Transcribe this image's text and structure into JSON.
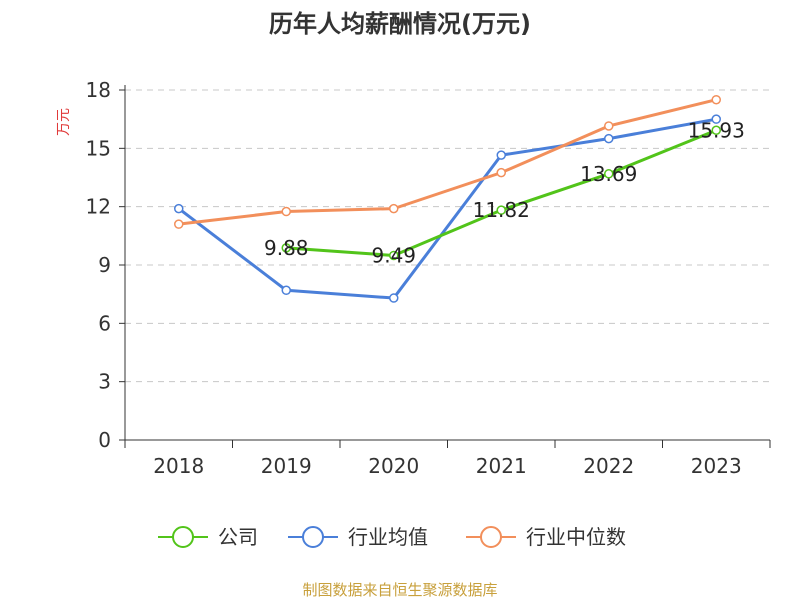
{
  "chart_data": {
    "type": "line",
    "title": "历年人均薪酬情况(万元)",
    "ylabel": "万元",
    "xlabel": "",
    "categories": [
      "2018",
      "2019",
      "2020",
      "2021",
      "2022",
      "2023"
    ],
    "ylim": [
      0,
      18
    ],
    "yticks": [
      0,
      3,
      6,
      9,
      12,
      15,
      18
    ],
    "grid": true,
    "legend_position": "bottom",
    "series": [
      {
        "name": "公司",
        "color": "#52c41a",
        "values": [
          null,
          9.88,
          9.49,
          11.82,
          13.69,
          15.93
        ],
        "labels": [
          "",
          "9.88",
          "9.49",
          "11.82",
          "13.69",
          "15.93"
        ]
      },
      {
        "name": "行业均值",
        "color": "#4a7fd9",
        "values": [
          11.9,
          7.7,
          7.3,
          14.65,
          15.5,
          16.5
        ]
      },
      {
        "name": "行业中位数",
        "color": "#f28f5b",
        "values": [
          11.1,
          11.75,
          11.9,
          13.75,
          16.15,
          17.5
        ]
      }
    ],
    "axis_title_color": "#e03a3a"
  },
  "source": {
    "text": "制图数据来自恒生聚源数据库",
    "color": "#c8a03c"
  }
}
